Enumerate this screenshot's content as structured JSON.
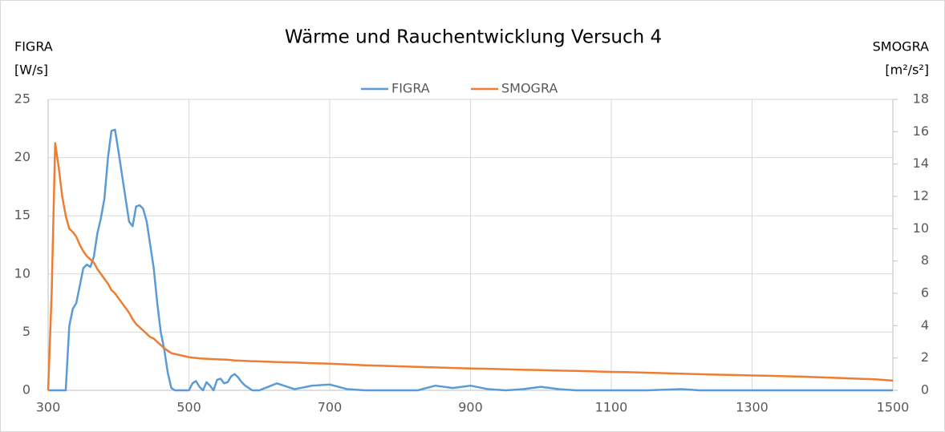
{
  "chart_data": {
    "type": "line",
    "title": "Wärme und Rauchentwicklung Versuch 4",
    "y_label": [
      "FIGRA",
      "[W/s]"
    ],
    "y2_label": [
      "SMOGRA",
      "[m²/s²]"
    ],
    "x": [
      300,
      305,
      310,
      315,
      320,
      325,
      330,
      335,
      340,
      345,
      350,
      355,
      360,
      365,
      370,
      375,
      380,
      385,
      390,
      395,
      400,
      405,
      410,
      415,
      420,
      425,
      430,
      435,
      440,
      445,
      450,
      455,
      460,
      465,
      470,
      475,
      480,
      485,
      490,
      495,
      500,
      505,
      510,
      515,
      520,
      525,
      530,
      535,
      540,
      545,
      550,
      555,
      560,
      565,
      570,
      575,
      580,
      585,
      590,
      595,
      600,
      625,
      650,
      675,
      700,
      725,
      750,
      775,
      800,
      825,
      850,
      875,
      900,
      925,
      950,
      975,
      1000,
      1025,
      1050,
      1075,
      1100,
      1125,
      1150,
      1175,
      1200,
      1225,
      1250,
      1275,
      1300,
      1325,
      1350,
      1375,
      1400,
      1425,
      1450,
      1475,
      1500
    ],
    "series": [
      {
        "name": "FIGRA",
        "color": "#5b9bd5",
        "axis": "y",
        "values": [
          0,
          0,
          0,
          0,
          0,
          0,
          5.5,
          7,
          7.5,
          9,
          10.5,
          10.8,
          10.6,
          11.5,
          13.5,
          14.8,
          16.5,
          20,
          22.3,
          22.4,
          20.5,
          18.5,
          16.5,
          14.5,
          14.1,
          15.8,
          15.9,
          15.6,
          14.5,
          12.5,
          10.5,
          7.5,
          5,
          3.5,
          1.5,
          0.2,
          0,
          0,
          0,
          0,
          0,
          0.6,
          0.8,
          0.3,
          0,
          0.7,
          0.4,
          0,
          0.9,
          1,
          0.6,
          0.7,
          1.2,
          1.4,
          1.1,
          0.7,
          0.4,
          0.2,
          0,
          0,
          0,
          0.6,
          0.1,
          0.4,
          0.5,
          0.1,
          0,
          0,
          0,
          0,
          0.4,
          0.2,
          0.4,
          0.1,
          0,
          0.1,
          0.3,
          0.1,
          0,
          0,
          0,
          0,
          0,
          0.05,
          0.1,
          0,
          0,
          0,
          0,
          0,
          0,
          0,
          0,
          0,
          0,
          0,
          0
        ]
      },
      {
        "name": "SMOGRA",
        "color": "#ed7d31",
        "axis": "y2",
        "values": [
          0,
          6,
          15.3,
          13.8,
          12,
          10.8,
          10,
          9.8,
          9.5,
          9,
          8.6,
          8.3,
          8.1,
          7.9,
          7.5,
          7.2,
          6.9,
          6.6,
          6.2,
          6,
          5.7,
          5.4,
          5.1,
          4.8,
          4.4,
          4.1,
          3.9,
          3.7,
          3.5,
          3.3,
          3.2,
          3,
          2.8,
          2.6,
          2.45,
          2.3,
          2.25,
          2.2,
          2.15,
          2.1,
          2.05,
          2.02,
          2,
          1.98,
          1.96,
          1.95,
          1.94,
          1.93,
          1.92,
          1.91,
          1.9,
          1.89,
          1.87,
          1.85,
          1.84,
          1.83,
          1.82,
          1.81,
          1.8,
          1.8,
          1.79,
          1.75,
          1.72,
          1.68,
          1.65,
          1.6,
          1.55,
          1.52,
          1.48,
          1.45,
          1.42,
          1.38,
          1.35,
          1.33,
          1.3,
          1.27,
          1.25,
          1.22,
          1.2,
          1.17,
          1.14,
          1.12,
          1.09,
          1.06,
          1.03,
          1.0,
          0.97,
          0.95,
          0.92,
          0.9,
          0.87,
          0.84,
          0.8,
          0.76,
          0.72,
          0.68,
          0.6
        ]
      }
    ],
    "xlim": [
      300,
      1500
    ],
    "xticks": [
      300,
      500,
      700,
      900,
      1100,
      1300,
      1500
    ],
    "ylim": [
      0,
      25
    ],
    "yticks": [
      0,
      5,
      10,
      15,
      20,
      25
    ],
    "y2lim": [
      0,
      18
    ],
    "y2ticks": [
      0,
      2,
      4,
      6,
      8,
      10,
      12,
      14,
      16,
      18
    ],
    "grid": true,
    "legend": "top"
  }
}
